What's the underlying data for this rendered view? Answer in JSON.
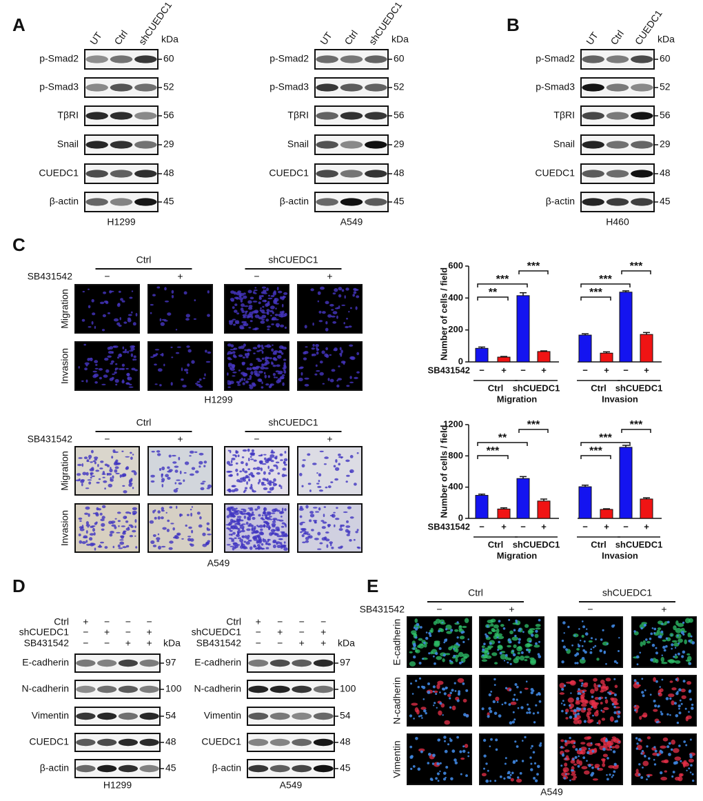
{
  "panel_labels": [
    "A",
    "B",
    "C",
    "D",
    "E"
  ],
  "blots": [
    {
      "lanes": [
        "UT",
        "Ctrl",
        "shCUEDC1"
      ],
      "unit": "kDa",
      "rows": [
        {
          "label": "p-Smad2",
          "kda": 60
        },
        {
          "label": "p-Smad3",
          "kda": 52
        },
        {
          "label": "TβRI",
          "kda": 56
        },
        {
          "label": "Snail",
          "kda": 29
        },
        {
          "label": "CUEDC1",
          "kda": 48
        },
        {
          "label": "β-actin",
          "kda": 45
        }
      ],
      "cell_line": "H1299"
    },
    {
      "lanes": [
        "UT",
        "Ctrl",
        "shCUEDC1"
      ],
      "unit": "kDa",
      "rows": [
        {
          "label": "p-Smad2",
          "kda": 60
        },
        {
          "label": "p-Smad3",
          "kda": 52
        },
        {
          "label": "TβRI",
          "kda": 56
        },
        {
          "label": "Snail",
          "kda": 29
        },
        {
          "label": "CUEDC1",
          "kda": 48
        },
        {
          "label": "β-actin",
          "kda": 45
        }
      ],
      "cell_line": "A549"
    },
    {
      "lanes": [
        "UT",
        "Ctrl",
        "CUEDC1"
      ],
      "unit": "kDa",
      "rows": [
        {
          "label": "p-Smad2",
          "kda": 60
        },
        {
          "label": "p-Smad3",
          "kda": 52
        },
        {
          "label": "TβRI",
          "kda": 56
        },
        {
          "label": "Snail",
          "kda": 29
        },
        {
          "label": "CUEDC1",
          "kda": 48
        },
        {
          "label": "β-actin",
          "kda": 45
        }
      ],
      "cell_line": "H460"
    }
  ],
  "migration_assays": [
    {
      "groups": [
        "Ctrl",
        "shCUEDC1"
      ],
      "treatment": "SB431542",
      "signs": [
        "−",
        "+",
        "−",
        "+"
      ],
      "rows": [
        "Migration",
        "Invasion"
      ],
      "cell_line": "H1299"
    },
    {
      "groups": [
        "Ctrl",
        "shCUEDC1"
      ],
      "treatment": "SB431542",
      "signs": [
        "−",
        "+",
        "−",
        "+"
      ],
      "rows": [
        "Migration",
        "Invasion"
      ],
      "cell_line": "A549"
    }
  ],
  "chart_data": [
    {
      "type": "bar",
      "ylabel": "Number of cells / field",
      "treatment_label": "SB431542",
      "ylim": [
        0,
        600
      ],
      "yticks": [
        0,
        200,
        400,
        600
      ],
      "categories": [
        "−",
        "+",
        "−",
        "+",
        "−",
        "+",
        "−",
        "+"
      ],
      "groups": [
        "Ctrl",
        "shCUEDC1",
        "Ctrl",
        "shCUEDC1"
      ],
      "supergroups": [
        "Migration",
        "Invasion"
      ],
      "values": [
        85,
        30,
        415,
        65,
        168,
        55,
        437,
        172
      ],
      "errors": [
        8,
        4,
        18,
        4,
        8,
        8,
        8,
        12
      ],
      "colors": [
        "#1414f0",
        "#f01414",
        "#1414f0",
        "#f01414",
        "#1414f0",
        "#f01414",
        "#1414f0",
        "#f01414"
      ],
      "annotations": [
        {
          "text": "**",
          "from": 0,
          "to": 1
        },
        {
          "text": "***",
          "from": 0,
          "to": 2
        },
        {
          "text": "***",
          "from": 2,
          "to": 3
        },
        {
          "text": "***",
          "from": 4,
          "to": 5
        },
        {
          "text": "***",
          "from": 4,
          "to": 6
        },
        {
          "text": "***",
          "from": 6,
          "to": 7
        }
      ]
    },
    {
      "type": "bar",
      "ylabel": "Number of cells / field",
      "treatment_label": "SB431542",
      "ylim": [
        0,
        1200
      ],
      "yticks": [
        0,
        400,
        800,
        1200
      ],
      "categories": [
        "−",
        "+",
        "−",
        "+",
        "−",
        "+",
        "−",
        "+"
      ],
      "groups": [
        "Ctrl",
        "shCUEDC1",
        "Ctrl",
        "shCUEDC1"
      ],
      "supergroups": [
        "Migration",
        "Invasion"
      ],
      "values": [
        295,
        120,
        510,
        222,
        405,
        115,
        910,
        248
      ],
      "errors": [
        15,
        15,
        25,
        25,
        20,
        8,
        25,
        15
      ],
      "colors": [
        "#1414f0",
        "#f01414",
        "#1414f0",
        "#f01414",
        "#1414f0",
        "#f01414",
        "#1414f0",
        "#f01414"
      ],
      "annotations": [
        {
          "text": "***",
          "from": 0,
          "to": 1
        },
        {
          "text": "**",
          "from": 0,
          "to": 2
        },
        {
          "text": "***",
          "from": 2,
          "to": 3
        },
        {
          "text": "***",
          "from": 4,
          "to": 5
        },
        {
          "text": "***",
          "from": 4,
          "to": 6
        },
        {
          "text": "***",
          "from": 6,
          "to": 7
        }
      ]
    }
  ],
  "treatment_blots": [
    {
      "conditions": [
        {
          "label": "Ctrl",
          "signs": [
            "+",
            "−",
            "−",
            "−"
          ]
        },
        {
          "label": "shCUEDC1",
          "signs": [
            "−",
            "+",
            "−",
            "+"
          ]
        },
        {
          "label": "SB431542",
          "signs": [
            "−",
            "−",
            "+",
            "+"
          ]
        }
      ],
      "unit": "kDa",
      "rows": [
        {
          "label": "E-cadherin",
          "kda": 97
        },
        {
          "label": "N-cadherin",
          "kda": 100
        },
        {
          "label": "Vimentin",
          "kda": 54
        },
        {
          "label": "CUEDC1",
          "kda": 48
        },
        {
          "label": "β-actin",
          "kda": 45
        }
      ],
      "cell_line": "H1299"
    },
    {
      "conditions": [
        {
          "label": "Ctrl",
          "signs": [
            "+",
            "−",
            "−",
            "−"
          ]
        },
        {
          "label": "shCUEDC1",
          "signs": [
            "−",
            "+",
            "−",
            "+"
          ]
        },
        {
          "label": "SB431542",
          "signs": [
            "−",
            "−",
            "+",
            "+"
          ]
        }
      ],
      "unit": "kDa",
      "rows": [
        {
          "label": "E-cadherin",
          "kda": 97
        },
        {
          "label": "N-cadherin",
          "kda": 100
        },
        {
          "label": "Vimentin",
          "kda": 54
        },
        {
          "label": "CUEDC1",
          "kda": 48
        },
        {
          "label": "β-actin",
          "kda": 45
        }
      ],
      "cell_line": "A549"
    }
  ],
  "immunofluorescence": {
    "groups": [
      "Ctrl",
      "shCUEDC1"
    ],
    "treatment": "SB431542",
    "signs": [
      "−",
      "+",
      "−",
      "+"
    ],
    "rows": [
      "E-cadherin",
      "N-cadherin",
      "Vimentin"
    ],
    "cell_line": "A549"
  }
}
